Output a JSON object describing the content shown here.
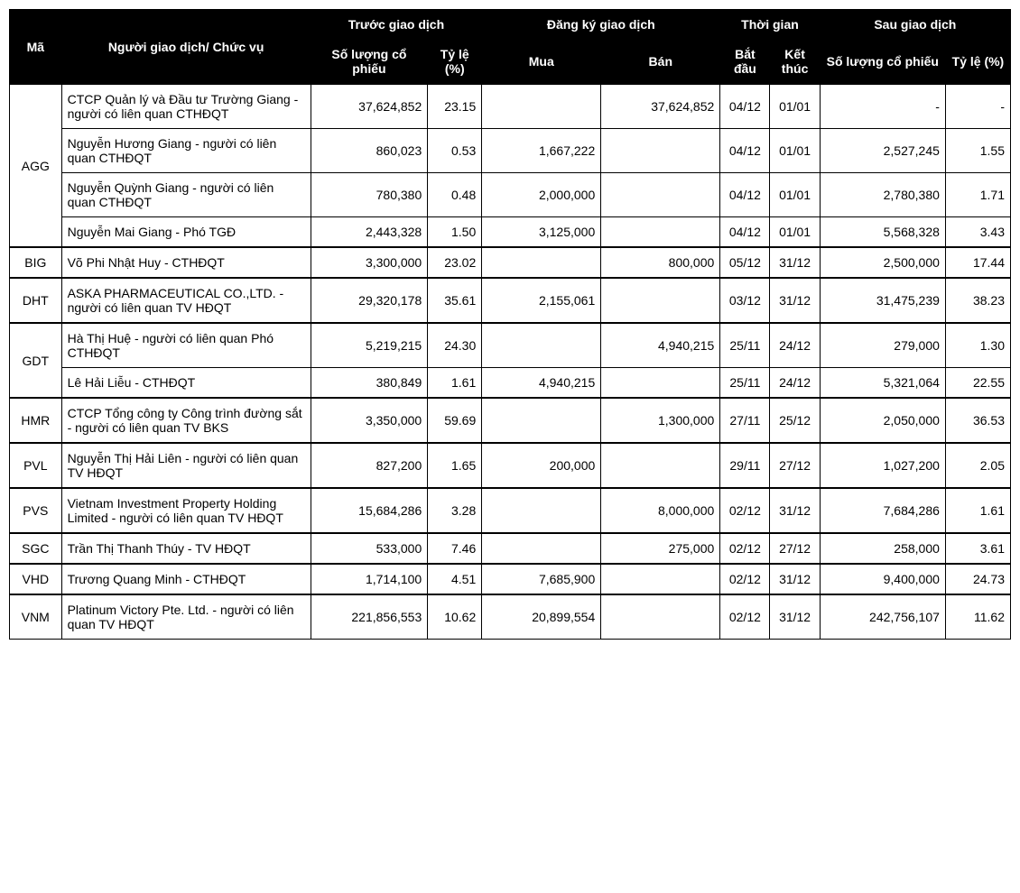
{
  "table": {
    "type": "table",
    "background_color": "#ffffff",
    "border_color": "#000000",
    "header_bg": "#000000",
    "header_fg": "#ffffff",
    "font_family": "Arial",
    "font_size_pt": 10,
    "columns": {
      "ma": "Mã",
      "nguoi": "Người giao dịch/\nChức vụ",
      "truoc_group": "Trước giao dịch",
      "truoc_sl": "Số lượng cổ phiếu",
      "truoc_tl": "Tỷ lệ (%)",
      "dangky_group": "Đăng ký giao dịch",
      "mua": "Mua",
      "ban": "Bán",
      "thoigian_group": "Thời gian",
      "batdau": "Bắt đầu",
      "ketthuc": "Kết thúc",
      "sau_group": "Sau giao dịch",
      "sau_sl": "Số lượng cổ phiếu",
      "sau_tl": "Tỷ lệ (%)"
    },
    "groups": [
      {
        "ma": "AGG",
        "rows": [
          {
            "nguoi": "CTCP Quản lý và Đầu tư Trường Giang - người có liên quan CTHĐQT",
            "truoc_sl": "37,624,852",
            "truoc_tl": "23.15",
            "mua": "",
            "ban": "37,624,852",
            "batdau": "04/12",
            "ketthuc": "01/01",
            "sau_sl": "-",
            "sau_tl": "-"
          },
          {
            "nguoi": "Nguyễn Hương Giang - người có liên quan CTHĐQT",
            "truoc_sl": "860,023",
            "truoc_tl": "0.53",
            "mua": "1,667,222",
            "ban": "",
            "batdau": "04/12",
            "ketthuc": "01/01",
            "sau_sl": "2,527,245",
            "sau_tl": "1.55"
          },
          {
            "nguoi": "Nguyễn Quỳnh Giang - người có liên quan CTHĐQT",
            "truoc_sl": "780,380",
            "truoc_tl": "0.48",
            "mua": "2,000,000",
            "ban": "",
            "batdau": "04/12",
            "ketthuc": "01/01",
            "sau_sl": "2,780,380",
            "sau_tl": "1.71"
          },
          {
            "nguoi": "Nguyễn Mai Giang - Phó TGĐ",
            "truoc_sl": "2,443,328",
            "truoc_tl": "1.50",
            "mua": "3,125,000",
            "ban": "",
            "batdau": "04/12",
            "ketthuc": "01/01",
            "sau_sl": "5,568,328",
            "sau_tl": "3.43"
          }
        ]
      },
      {
        "ma": "BIG",
        "rows": [
          {
            "nguoi": "Võ Phi Nhật Huy - CTHĐQT",
            "truoc_sl": "3,300,000",
            "truoc_tl": "23.02",
            "mua": "",
            "ban": "800,000",
            "batdau": "05/12",
            "ketthuc": "31/12",
            "sau_sl": "2,500,000",
            "sau_tl": "17.44"
          }
        ]
      },
      {
        "ma": "DHT",
        "rows": [
          {
            "nguoi": "ASKA PHARMACEUTICAL CO.,LTD. - người có liên quan TV HĐQT",
            "truoc_sl": "29,320,178",
            "truoc_tl": "35.61",
            "mua": "2,155,061",
            "ban": "",
            "batdau": "03/12",
            "ketthuc": "31/12",
            "sau_sl": "31,475,239",
            "sau_tl": "38.23"
          }
        ]
      },
      {
        "ma": "GDT",
        "rows": [
          {
            "nguoi": "Hà Thị Huệ - người có liên quan Phó CTHĐQT",
            "truoc_sl": "5,219,215",
            "truoc_tl": "24.30",
            "mua": "",
            "ban": "4,940,215",
            "batdau": "25/11",
            "ketthuc": "24/12",
            "sau_sl": "279,000",
            "sau_tl": "1.30"
          },
          {
            "nguoi": "Lê Hải Liễu - CTHĐQT",
            "truoc_sl": "380,849",
            "truoc_tl": "1.61",
            "mua": "4,940,215",
            "ban": "",
            "batdau": "25/11",
            "ketthuc": "24/12",
            "sau_sl": "5,321,064",
            "sau_tl": "22.55"
          }
        ]
      },
      {
        "ma": "HMR",
        "rows": [
          {
            "nguoi": "CTCP Tổng công ty Công trình đường sắt - người có liên quan TV BKS",
            "truoc_sl": "3,350,000",
            "truoc_tl": "59.69",
            "mua": "",
            "ban": "1,300,000",
            "batdau": "27/11",
            "ketthuc": "25/12",
            "sau_sl": "2,050,000",
            "sau_tl": "36.53"
          }
        ]
      },
      {
        "ma": "PVL",
        "rows": [
          {
            "nguoi": "Nguyễn Thị Hải Liên - người có liên quan TV HĐQT",
            "truoc_sl": "827,200",
            "truoc_tl": "1.65",
            "mua": "200,000",
            "ban": "",
            "batdau": "29/11",
            "ketthuc": "27/12",
            "sau_sl": "1,027,200",
            "sau_tl": "2.05"
          }
        ]
      },
      {
        "ma": "PVS",
        "rows": [
          {
            "nguoi": "Vietnam Investment Property Holding Limited - người có liên quan TV HĐQT",
            "truoc_sl": "15,684,286",
            "truoc_tl": "3.28",
            "mua": "",
            "ban": "8,000,000",
            "batdau": "02/12",
            "ketthuc": "31/12",
            "sau_sl": "7,684,286",
            "sau_tl": "1.61"
          }
        ]
      },
      {
        "ma": "SGC",
        "rows": [
          {
            "nguoi": "Trần Thị Thanh Thúy - TV HĐQT",
            "truoc_sl": "533,000",
            "truoc_tl": "7.46",
            "mua": "",
            "ban": "275,000",
            "batdau": "02/12",
            "ketthuc": "27/12",
            "sau_sl": "258,000",
            "sau_tl": "3.61"
          }
        ]
      },
      {
        "ma": "VHD",
        "rows": [
          {
            "nguoi": "Trương Quang Minh - CTHĐQT",
            "truoc_sl": "1,714,100",
            "truoc_tl": "4.51",
            "mua": "7,685,900",
            "ban": "",
            "batdau": "02/12",
            "ketthuc": "31/12",
            "sau_sl": "9,400,000",
            "sau_tl": "24.73"
          }
        ]
      },
      {
        "ma": "VNM",
        "rows": [
          {
            "nguoi": "Platinum Victory Pte. Ltd. - người có liên quan TV HĐQT",
            "truoc_sl": "221,856,553",
            "truoc_tl": "10.62",
            "mua": "20,899,554",
            "ban": "",
            "batdau": "02/12",
            "ketthuc": "31/12",
            "sau_sl": "242,756,107",
            "sau_tl": "11.62"
          }
        ]
      }
    ]
  }
}
